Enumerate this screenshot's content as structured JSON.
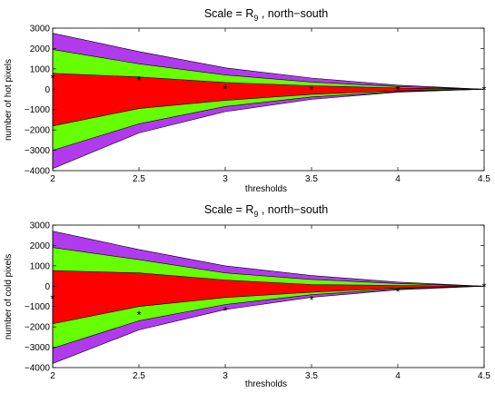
{
  "chart_data": [
    {
      "type": "area",
      "title_main": "Scale = R",
      "title_sub": "9",
      "title_rest": " , north−south",
      "xlabel": "thresholds",
      "ylabel": "number of hot pixels",
      "xlim": [
        2,
        4.5
      ],
      "ylim": [
        -4000,
        3000
      ],
      "xticks": [
        "2",
        "2.5",
        "3",
        "3.5",
        "4",
        "4.5"
      ],
      "yticks": [
        "3000",
        "2000",
        "1000",
        "0",
        "−1000",
        "−2000",
        "−3000",
        "−4000"
      ],
      "x": [
        2,
        2.5,
        3,
        3.5,
        4,
        4.5
      ],
      "bands": [
        {
          "color": "#b23aee",
          "upper": [
            2750,
            1850,
            1050,
            550,
            200,
            0
          ],
          "lower": [
            -3900,
            -2150,
            -1100,
            -500,
            -150,
            0
          ]
        },
        {
          "color": "#66ff00",
          "upper": [
            1950,
            1250,
            700,
            350,
            130,
            0
          ],
          "lower": [
            -3000,
            -1700,
            -850,
            -380,
            -110,
            0
          ]
        },
        {
          "color": "#ff0000",
          "upper": [
            780,
            600,
            330,
            170,
            60,
            0
          ],
          "lower": [
            -1800,
            -950,
            -550,
            -250,
            -80,
            0
          ]
        }
      ],
      "points": [
        560,
        450,
        30,
        0,
        0,
        0
      ]
    },
    {
      "type": "area",
      "title_main": "Scale = R",
      "title_sub": "9",
      "title_rest": " , north−south",
      "xlabel": "thresholds",
      "ylabel": "number of cold pixels",
      "xlim": [
        2,
        4.5
      ],
      "ylim": [
        -4000,
        3000
      ],
      "xticks": [
        "2",
        "2.5",
        "3",
        "3.5",
        "4",
        "4.5"
      ],
      "yticks": [
        "3000",
        "2000",
        "1000",
        "0",
        "−1000",
        "−2000",
        "−3000",
        "−4000"
      ],
      "x": [
        2,
        2.5,
        3,
        3.5,
        4,
        4.5
      ],
      "bands": [
        {
          "color": "#b23aee",
          "upper": [
            2700,
            1800,
            1000,
            520,
            200,
            0
          ],
          "lower": [
            -3800,
            -2150,
            -1150,
            -550,
            -180,
            0
          ]
        },
        {
          "color": "#66ff00",
          "upper": [
            1900,
            1300,
            650,
            330,
            130,
            0
          ],
          "lower": [
            -3050,
            -1700,
            -900,
            -420,
            -130,
            0
          ]
        },
        {
          "color": "#ff0000",
          "upper": [
            760,
            650,
            300,
            80,
            30,
            0
          ],
          "lower": [
            -1850,
            -1000,
            -560,
            -300,
            -90,
            0
          ]
        }
      ],
      "points": [
        -600,
        -1400,
        -1200,
        -650,
        -250,
        0
      ]
    }
  ]
}
